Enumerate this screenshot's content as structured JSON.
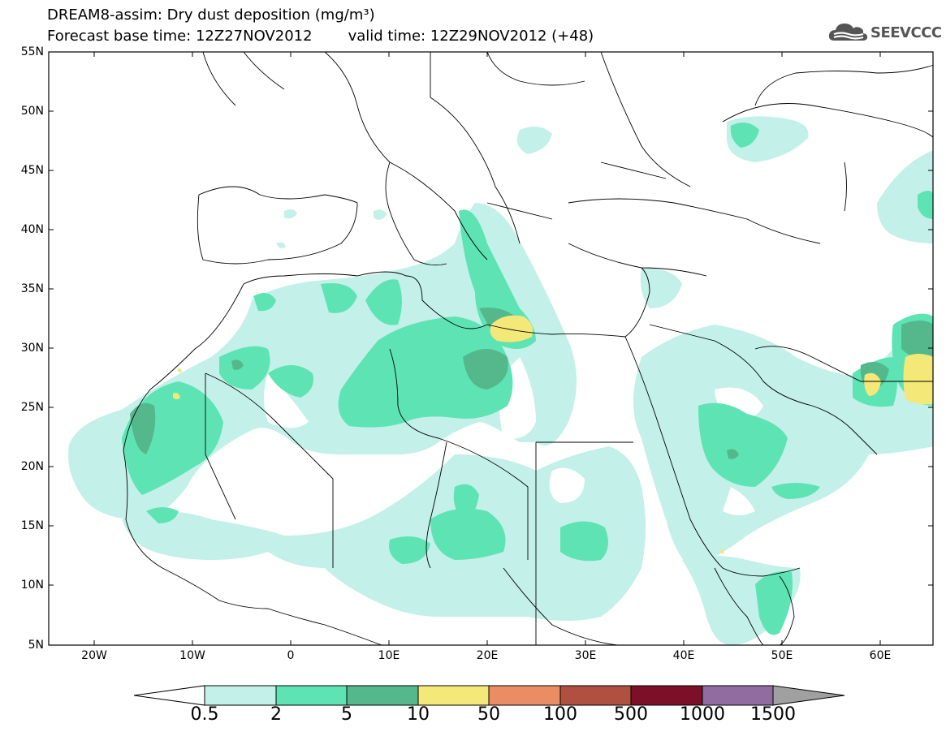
{
  "title_line1": "DREAM8-assim: Dry dust deposition (mg/m³)",
  "forecast_base": "Forecast base time: 12Z27NOV2012",
  "valid_time": "valid time: 12Z29NOV2012 (+48)",
  "logo_text": "SEEVCCC",
  "logo_icon": "cloud-logo-icon",
  "map": {
    "lon_range": [
      -25,
      65
    ],
    "lat_range": [
      5,
      55
    ],
    "lat_labels": [
      "55N",
      "50N",
      "45N",
      "40N",
      "35N",
      "30N",
      "25N",
      "20N",
      "15N",
      "10N",
      "5N"
    ],
    "lon_labels": [
      "20W",
      "10W",
      "0",
      "10E",
      "20E",
      "30E",
      "40E",
      "50E",
      "60E"
    ]
  },
  "colorbar": {
    "labels": [
      "0.5",
      "2",
      "5",
      "10",
      "50",
      "100",
      "500",
      "1000",
      "1500"
    ],
    "colors": [
      "#ffffff",
      "#c3f0e8",
      "#5ee4b4",
      "#55b88c",
      "#f4e878",
      "#ea8c64",
      "#b05040",
      "#7c1028",
      "#906ca0",
      "#a0a0a0"
    ]
  }
}
